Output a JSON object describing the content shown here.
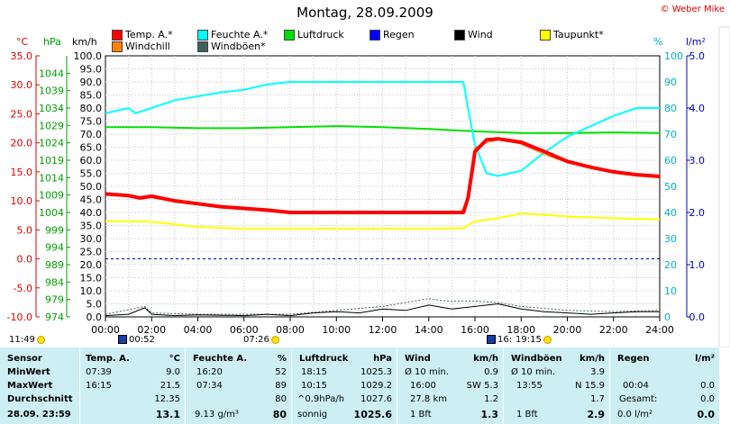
{
  "title": "Montag, 28.09.2009",
  "credit": "© Weber Mike",
  "legend": [
    {
      "label": "Temp. A.*",
      "color": "#ff0000"
    },
    {
      "label": "Feuchte A.*",
      "color": "#00ffff"
    },
    {
      "label": "Luftdruck",
      "color": "#00e000"
    },
    {
      "label": "Regen",
      "color": "#0000ff"
    },
    {
      "label": "Wind",
      "color": "#000000"
    },
    {
      "label": "Taupunkt*",
      "color": "#ffff00"
    },
    {
      "label": "Windchill",
      "color": "#ff8000"
    },
    {
      "label": "Windböen*",
      "color": "#406060"
    }
  ],
  "units": {
    "temp": "°C",
    "pressure": "hPa",
    "wind": "km/h",
    "humidity": "%",
    "rain": "l/m²"
  },
  "axes": {
    "temp_ticks": [
      "35.0",
      "30.0",
      "25.0",
      "20.0",
      "15.0",
      "10.0",
      "5.0",
      "0.0",
      "-5.0",
      "-10.0"
    ],
    "pressure_ticks": [
      "1044",
      "1039",
      "1034",
      "1029",
      "1024",
      "1019",
      "1014",
      "1009",
      "1004",
      "999",
      "994",
      "989",
      "984",
      "979",
      "974"
    ],
    "wind_ticks": [
      "100.0",
      "95.0",
      "90.0",
      "85.0",
      "80.0",
      "75.0",
      "70.0",
      "65.0",
      "60.0",
      "55.0",
      "50.0",
      "45.0",
      "40.0",
      "35.0",
      "30.0",
      "25.0",
      "20.0",
      "15.0",
      "10.0",
      "5.0",
      "0.0"
    ],
    "humidity_ticks": [
      "100",
      "90",
      "80",
      "70",
      "60",
      "50",
      "40",
      "30",
      "20",
      "10",
      "0"
    ],
    "rain_ticks": [
      "5.0",
      "4.0",
      "3.0",
      "2.0",
      "1.0",
      "0.0"
    ],
    "x_ticks": [
      "00:00",
      "02:00",
      "04:00",
      "06:00",
      "08:00",
      "10:00",
      "12:00",
      "14:00",
      "16:00",
      "18:00",
      "20:00",
      "22:00",
      "24:00"
    ]
  },
  "markers": {
    "sunrise": "07:26",
    "sunset": "19:15",
    "moonset": "00:52",
    "moonrise": "16:",
    "left_time": "11:49"
  },
  "chart_data": {
    "type": "line",
    "x_unit": "hour of day",
    "xlim": [
      0,
      24
    ],
    "series": [
      {
        "name": "Temp. A.*",
        "unit": "°C",
        "color": "#ff0000",
        "points": [
          [
            0,
            11.2
          ],
          [
            1,
            10.9
          ],
          [
            1.5,
            10.5
          ],
          [
            2,
            10.8
          ],
          [
            3,
            10.0
          ],
          [
            4,
            9.5
          ],
          [
            5,
            9.0
          ],
          [
            6,
            8.7
          ],
          [
            7,
            8.4
          ],
          [
            8,
            8.0
          ],
          [
            10,
            8.0
          ],
          [
            12,
            8.0
          ],
          [
            14,
            8.0
          ],
          [
            15.5,
            8.0
          ],
          [
            15.7,
            10.5
          ],
          [
            16,
            18.5
          ],
          [
            16.5,
            20.5
          ],
          [
            17,
            20.7
          ],
          [
            18,
            20.1
          ],
          [
            19,
            18.5
          ],
          [
            20,
            16.8
          ],
          [
            21,
            15.8
          ],
          [
            22,
            15.0
          ],
          [
            23,
            14.5
          ],
          [
            24,
            14.2
          ]
        ]
      },
      {
        "name": "Feuchte A.*",
        "unit": "%",
        "color": "#00ffff",
        "points": [
          [
            0,
            78
          ],
          [
            1,
            80
          ],
          [
            1.3,
            78
          ],
          [
            2,
            80
          ],
          [
            3,
            83
          ],
          [
            5,
            86
          ],
          [
            6,
            87
          ],
          [
            7,
            89
          ],
          [
            8,
            90
          ],
          [
            10,
            90
          ],
          [
            12,
            90
          ],
          [
            14,
            90
          ],
          [
            15.5,
            90
          ],
          [
            15.7,
            80
          ],
          [
            16,
            66
          ],
          [
            16.5,
            55
          ],
          [
            17,
            54
          ],
          [
            18,
            56
          ],
          [
            19,
            63
          ],
          [
            20,
            69
          ],
          [
            21,
            73
          ],
          [
            22,
            77
          ],
          [
            23,
            80
          ],
          [
            24,
            80
          ]
        ]
      },
      {
        "name": "Luftdruck",
        "unit": "hPa",
        "color": "#00e000",
        "points": [
          [
            0,
            1028.5
          ],
          [
            2,
            1028.5
          ],
          [
            4,
            1028.2
          ],
          [
            6,
            1028.2
          ],
          [
            8,
            1028.5
          ],
          [
            10,
            1028.8
          ],
          [
            12,
            1028.5
          ],
          [
            14,
            1028.0
          ],
          [
            16,
            1027.3
          ],
          [
            18,
            1026.8
          ],
          [
            20,
            1026.8
          ],
          [
            22,
            1027.0
          ],
          [
            24,
            1026.8
          ]
        ]
      },
      {
        "name": "Taupunkt*",
        "unit": "°C",
        "color": "#ffff00",
        "points": [
          [
            0,
            6.5
          ],
          [
            2,
            6.4
          ],
          [
            4,
            5.5
          ],
          [
            6,
            5.2
          ],
          [
            8,
            5.2
          ],
          [
            10,
            5.2
          ],
          [
            12,
            5.2
          ],
          [
            14,
            5.2
          ],
          [
            15.5,
            5.3
          ],
          [
            16,
            6.5
          ],
          [
            17,
            7.0
          ],
          [
            18,
            7.8
          ],
          [
            19,
            7.6
          ],
          [
            20,
            7.3
          ],
          [
            22,
            7.0
          ],
          [
            24,
            6.8
          ]
        ]
      },
      {
        "name": "Windchill",
        "unit": "°C",
        "color": "#ff8000",
        "points": [
          [
            15.4,
            8.0
          ],
          [
            15.7,
            10.5
          ],
          [
            16,
            19.2
          ],
          [
            16.5,
            20.0
          ],
          [
            17,
            20.5
          ],
          [
            18,
            19.8
          ],
          [
            19,
            18.0
          ],
          [
            20,
            16.6
          ]
        ]
      },
      {
        "name": "Wind",
        "unit": "km/h",
        "color": "#000000",
        "points": [
          [
            0,
            0.5
          ],
          [
            1,
            1
          ],
          [
            1.7,
            3.5
          ],
          [
            2,
            1
          ],
          [
            3,
            0.5
          ],
          [
            4,
            0.8
          ],
          [
            6,
            0.5
          ],
          [
            7,
            1
          ],
          [
            8,
            0.5
          ],
          [
            9,
            1.5
          ],
          [
            10,
            2
          ],
          [
            11,
            1.5
          ],
          [
            12,
            3
          ],
          [
            13,
            2.5
          ],
          [
            14,
            4.5
          ],
          [
            15,
            3
          ],
          [
            16,
            4
          ],
          [
            17,
            5
          ],
          [
            18,
            3
          ],
          [
            19,
            2
          ],
          [
            20,
            1.5
          ],
          [
            21,
            1
          ],
          [
            22,
            1.5
          ],
          [
            23,
            2
          ],
          [
            24,
            2
          ]
        ]
      },
      {
        "name": "Windböen*",
        "unit": "km/h",
        "color": "#406060",
        "points": [
          [
            0,
            1
          ],
          [
            1.7,
            4
          ],
          [
            2,
            1.5
          ],
          [
            4,
            1
          ],
          [
            8,
            1
          ],
          [
            10,
            2.5
          ],
          [
            12,
            4
          ],
          [
            14,
            7
          ],
          [
            14.8,
            6
          ],
          [
            16,
            6
          ],
          [
            17,
            5.5
          ],
          [
            18,
            4
          ],
          [
            20,
            2.5
          ],
          [
            22,
            2
          ],
          [
            24,
            2.5
          ]
        ]
      }
    ]
  },
  "stats": {
    "header": {
      "sensor": "Sensor",
      "temp": "Temp. A.",
      "temp_unit": "°C",
      "hum": "Feuchte A.",
      "hum_unit": "%",
      "press": "Luftdruck",
      "press_unit": "hPa",
      "wind": "Wind",
      "wind_unit": "km/h",
      "gust": "Windböen",
      "gust_unit": "km/h",
      "rain": "Regen",
      "rain_unit": "l/m²"
    },
    "rows": [
      {
        "label": "MinWert",
        "temp_time": "07:39",
        "temp_val": "9.0",
        "hum_time": "16:20",
        "hum_val": "52",
        "press_time": "18:15",
        "press_val": "1025.3",
        "wind_a": "Ø 10 min.",
        "wind_val": "0.9",
        "gust_a": "Ø 10 min.",
        "gust_val": "3.9",
        "rain_a": "",
        "rain_val": ""
      },
      {
        "label": "MaxWert",
        "temp_time": "16:15",
        "temp_val": "21.5",
        "hum_time": "07:34",
        "hum_val": "89",
        "press_time": "10:15",
        "press_val": "1029.2",
        "wind_a": "16:00",
        "wind_b": "SW 5.3",
        "gust_a": "13:55",
        "gust_b": "N 15.9",
        "rain_a": "00:04",
        "rain_val": "0.0"
      },
      {
        "label": "Durchschnitt",
        "temp_val": "12.35",
        "hum_val": "80",
        "press_time": "^0.9hPa/h",
        "press_val": "1027.6",
        "wind_a": "27.8 km",
        "wind_val": "1.2",
        "gust_val": "1.7",
        "rain_a": "Gesamt:",
        "rain_val": "0.0"
      },
      {
        "label": "28.09.  23:59",
        "temp_val": "13.1",
        "hum_time": "9.13 g/m³",
        "hum_val": "80",
        "press_time": "sonnig",
        "press_val": "1025.6",
        "wind_a": "1 Bft",
        "wind_val": "1.3",
        "gust_a": "1 Bft",
        "gust_val": "2.9",
        "rain_a": "0.0 l/m²",
        "rain_val": "0.0"
      }
    ]
  }
}
